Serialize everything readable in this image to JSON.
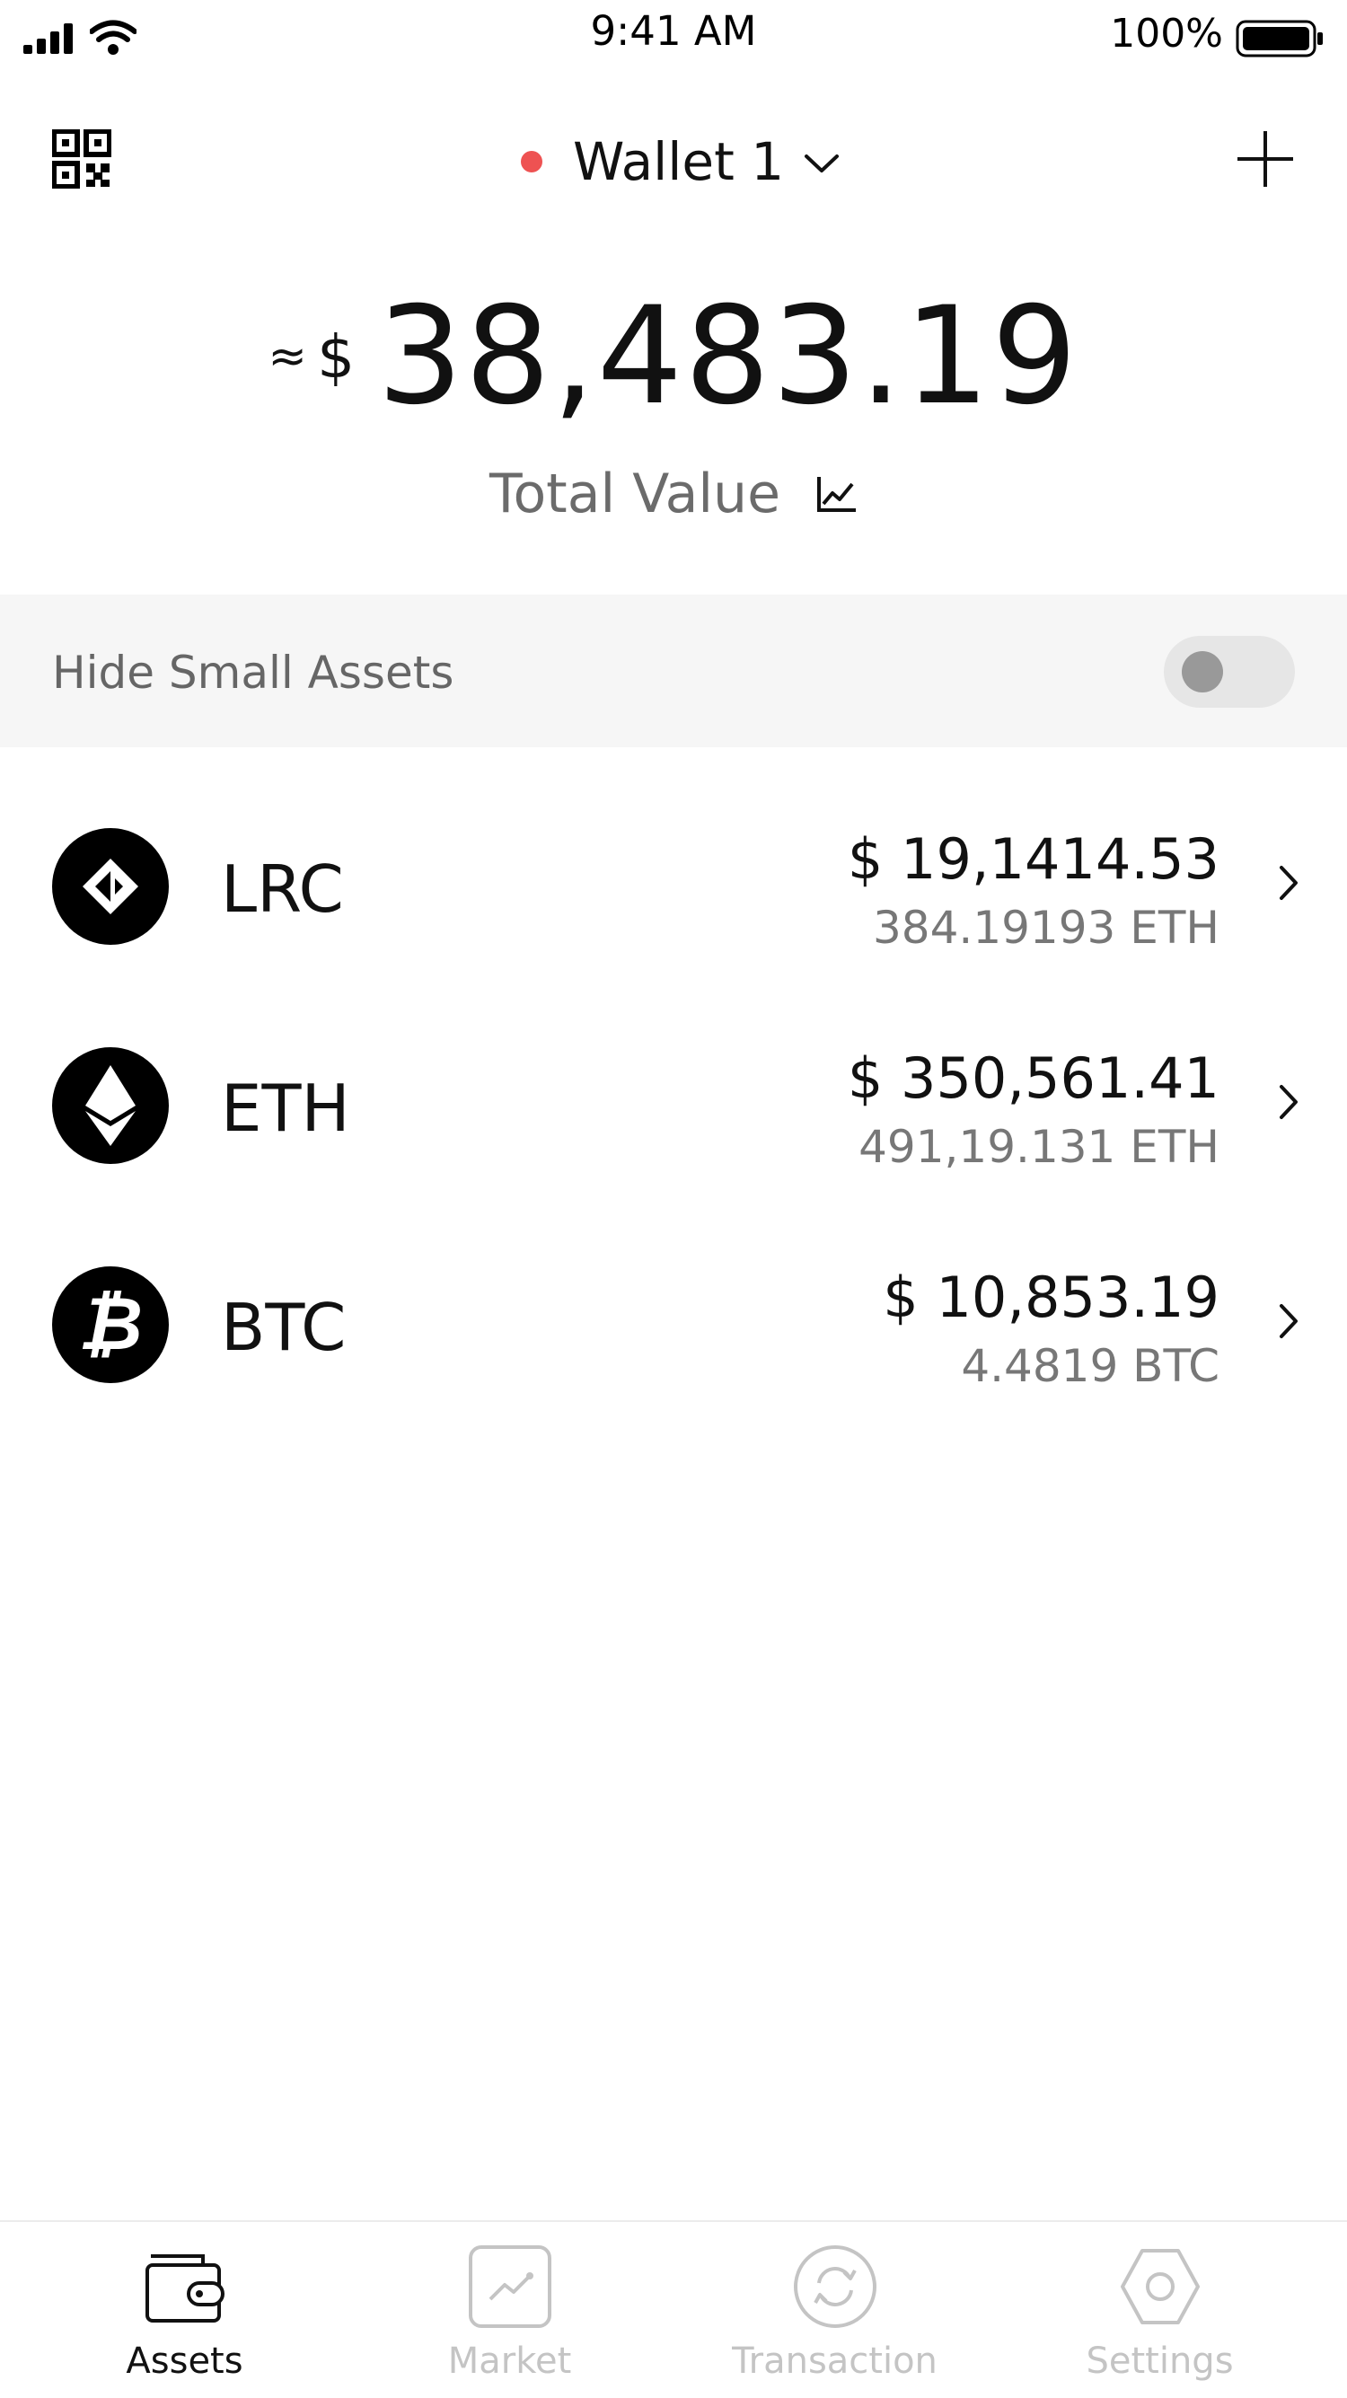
{
  "status_bar": {
    "time": "9:41 AM",
    "battery": "100%"
  },
  "header": {
    "wallet_name": "Wallet 1",
    "wallet_indicator_color": "#ee5252",
    "left_icon": "qr-code-icon",
    "right_icon": "plus-icon"
  },
  "balance": {
    "approx": "≈",
    "currency": "$",
    "amount": "38,483.19",
    "label": "Total Value",
    "label_icon": "line-chart-icon"
  },
  "hide_small": {
    "label": "Hide Small Assets",
    "enabled": false
  },
  "assets": [
    {
      "symbol": "LRC",
      "icon": "lrc-icon",
      "fiat": "$ 19,1414.53",
      "crypto": "384.19193 ETH"
    },
    {
      "symbol": "ETH",
      "icon": "eth-icon",
      "fiat": "$ 350,561.41",
      "crypto": "491,19.131 ETH"
    },
    {
      "symbol": "BTC",
      "icon": "btc-icon",
      "fiat": "$ 10,853.19",
      "crypto": "4.4819 BTC"
    }
  ],
  "tabs": [
    {
      "label": "Assets",
      "icon": "wallet-icon",
      "active": true
    },
    {
      "label": "Market",
      "icon": "market-chart-icon",
      "active": false
    },
    {
      "label": "Transaction",
      "icon": "transaction-icon",
      "active": false
    },
    {
      "label": "Settings",
      "icon": "settings-hexagon-icon",
      "active": false
    }
  ]
}
